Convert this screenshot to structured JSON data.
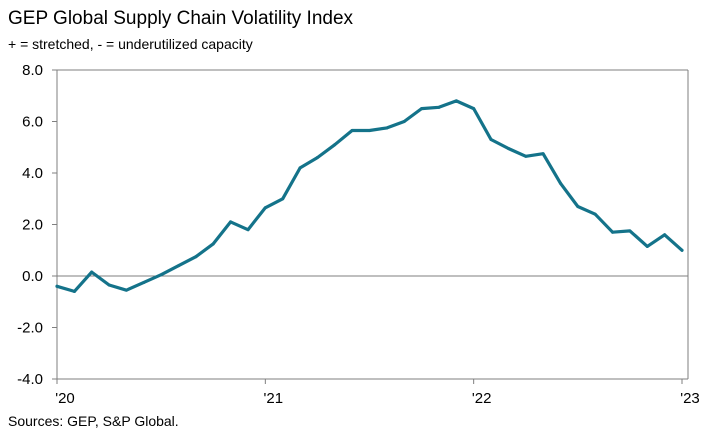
{
  "title": "GEP Global Supply Chain Volatility Index",
  "subtitle": "+ = stretched, - = underutilized capacity",
  "source": "Sources: GEP, S&P Global.",
  "chart_data": {
    "type": "line",
    "title": "GEP Global Supply Chain Volatility Index",
    "subtitle": "+ = stretched, - = underutilized capacity",
    "xlabel": "",
    "ylabel": "",
    "ylim": [
      -4.0,
      8.0
    ],
    "y_ticks": [
      -4.0,
      -2.0,
      0.0,
      2.0,
      4.0,
      6.0,
      8.0
    ],
    "y_tick_labels": [
      "-4.0",
      "-2.0",
      "0.0",
      "2.0",
      "4.0",
      "6.0",
      "8.0"
    ],
    "x_tick_labels": [
      "'20",
      "'21",
      "'22",
      "'23"
    ],
    "x_tick_positions": [
      "2020-01",
      "2021-01",
      "2022-01",
      "2023-01"
    ],
    "grid": false,
    "legend": "none",
    "line_color": "#14738a",
    "series": [
      {
        "x": [
          "2020-01",
          "2020-02",
          "2020-03",
          "2020-04",
          "2020-05",
          "2020-06",
          "2020-07",
          "2020-08",
          "2020-09",
          "2020-10",
          "2020-11",
          "2020-12",
          "2021-01",
          "2021-02",
          "2021-03",
          "2021-04",
          "2021-05",
          "2021-06",
          "2021-07",
          "2021-08",
          "2021-09",
          "2021-10",
          "2021-11",
          "2021-12",
          "2022-01",
          "2022-02",
          "2022-03",
          "2022-04",
          "2022-05",
          "2022-06",
          "2022-07",
          "2022-08",
          "2022-09",
          "2022-10",
          "2022-11",
          "2022-12",
          "2023-01"
        ],
        "values": [
          -0.4,
          -0.6,
          0.15,
          -0.35,
          -0.55,
          -0.25,
          0.05,
          0.4,
          0.75,
          1.25,
          2.1,
          1.8,
          2.65,
          3.0,
          4.2,
          4.6,
          5.1,
          5.65,
          5.65,
          5.75,
          6.0,
          6.5,
          6.55,
          6.8,
          6.5,
          5.3,
          4.95,
          4.65,
          4.75,
          3.6,
          2.7,
          2.4,
          1.7,
          1.75,
          1.15,
          1.6,
          1.0
        ]
      }
    ]
  }
}
